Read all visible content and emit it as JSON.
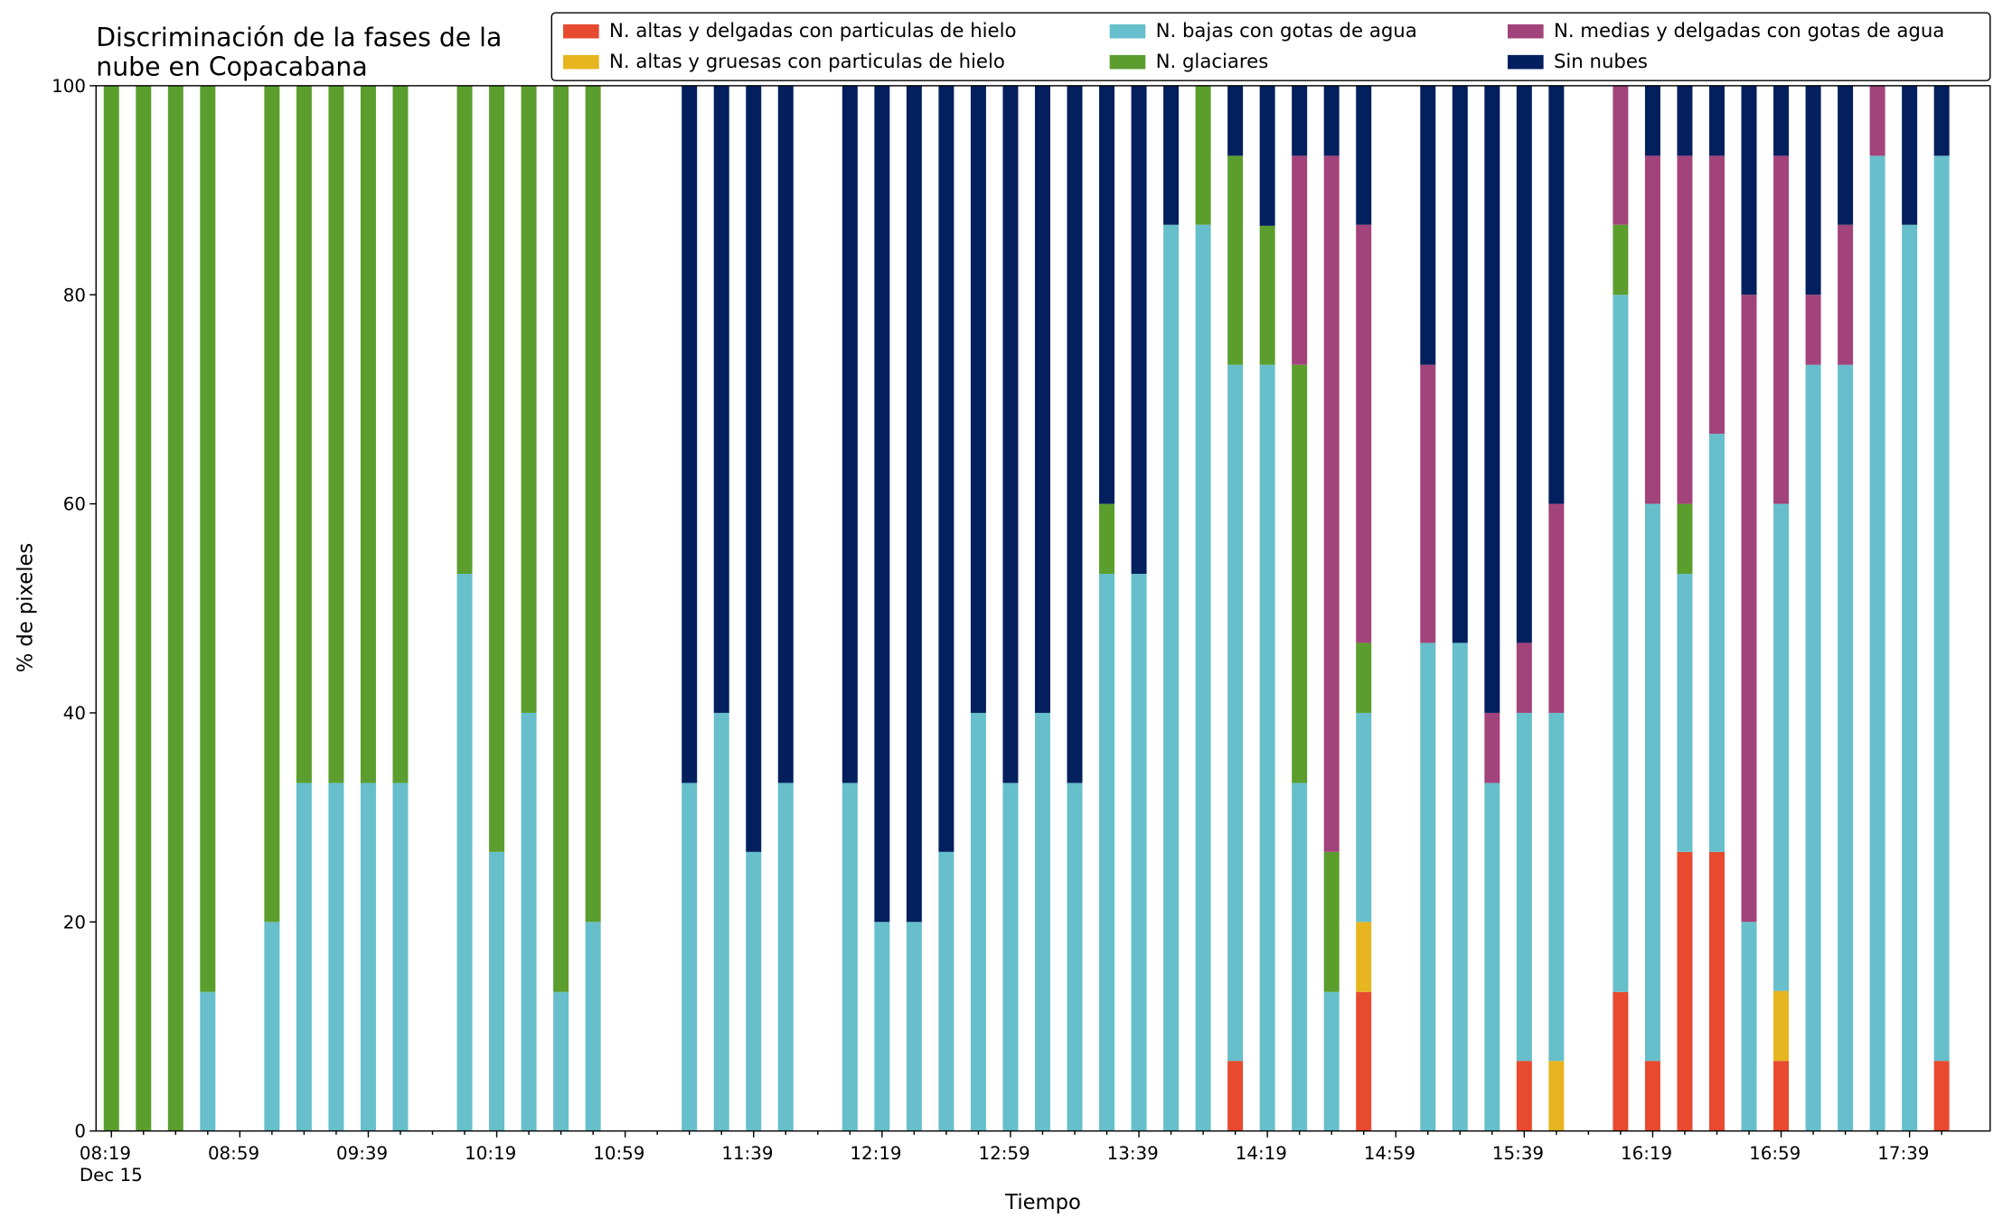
{
  "chart_data": {
    "type": "stacked_bar",
    "title": [
      "Discriminación de la fases de la",
      "nube en Copacabana"
    ],
    "xlabel": "Tiempo",
    "ylabel": "% de pixeles",
    "date_label": "Dec 15",
    "categories": [
      "08:19",
      null,
      null,
      null,
      "08:59",
      null,
      null,
      null,
      "09:39",
      null,
      null,
      null,
      "10:19",
      null,
      null,
      null,
      "10:59",
      null,
      null,
      null,
      "11:39",
      null,
      null,
      null,
      "12:19",
      null,
      null,
      null,
      "12:59",
      null,
      null,
      null,
      "13:39",
      null,
      null,
      null,
      "14:19",
      null,
      null,
      null,
      "14:59",
      null,
      null,
      null,
      "15:39",
      null,
      null,
      null,
      "16:19",
      null,
      null,
      null,
      "16:59",
      null,
      null,
      null,
      "17:39",
      null
    ],
    "ylim": [
      0,
      100
    ],
    "yticks": [
      0,
      20,
      40,
      60,
      80,
      100
    ],
    "legend": "upper right",
    "legend_columns": 3,
    "series": [
      {
        "name": "N. altas y delgadas con particulas de hielo",
        "color": "#e84a2f",
        "values": [
          0,
          0,
          0,
          0,
          0,
          0,
          0,
          0,
          0,
          0,
          0,
          0,
          0,
          0,
          0,
          0,
          0,
          0,
          0,
          0,
          0,
          0,
          0,
          0,
          0,
          0,
          0,
          0,
          0,
          0,
          0,
          0,
          0,
          0,
          0,
          6.7,
          0,
          0,
          0,
          13.3,
          0,
          0,
          0,
          0,
          6.7,
          0,
          0,
          13.3,
          6.7,
          26.7,
          26.7,
          0,
          6.7,
          0,
          0,
          0,
          0,
          6.7
        ]
      },
      {
        "name": "N. altas y gruesas con particulas de hielo",
        "color": "#e6b51f",
        "values": [
          0,
          0,
          0,
          0,
          0,
          0,
          0,
          0,
          0,
          0,
          0,
          0,
          0,
          0,
          0,
          0,
          0,
          0,
          0,
          0,
          0,
          0,
          0,
          0,
          0,
          0,
          0,
          0,
          0,
          0,
          0,
          0,
          0,
          0,
          0,
          0,
          0,
          0,
          0,
          6.7,
          0,
          0,
          0,
          0,
          0,
          6.7,
          0,
          0,
          0,
          0,
          0,
          0,
          6.7,
          0,
          0,
          0,
          0,
          0
        ]
      },
      {
        "name": "N. bajas con gotas de agua",
        "color": "#66bfcb",
        "values": [
          0,
          0,
          0,
          13.3,
          0,
          20,
          33.3,
          33.3,
          33.3,
          33.3,
          0,
          53.3,
          26.7,
          40,
          13.3,
          20,
          0,
          0,
          33.3,
          40,
          26.7,
          33.3,
          0,
          33.3,
          20,
          20,
          26.7,
          40,
          33.3,
          40,
          33.3,
          53.3,
          53.3,
          86.7,
          86.7,
          66.6,
          73.3,
          33.3,
          13.3,
          20,
          0,
          46.7,
          46.7,
          33.3,
          33.3,
          33.3,
          0,
          66.7,
          53.3,
          26.6,
          40,
          20,
          46.6,
          73.3,
          73.3,
          93.3,
          86.7,
          86.6
        ]
      },
      {
        "name": "N. glaciares",
        "color": "#5b9e2e",
        "values": [
          100,
          100,
          100,
          86.7,
          0,
          80,
          66.7,
          66.7,
          66.7,
          66.7,
          0,
          46.7,
          73.3,
          60,
          86.7,
          80,
          0,
          0,
          0,
          0,
          0,
          0,
          0,
          0,
          0,
          0,
          0,
          0,
          0,
          0,
          0,
          6.7,
          0,
          0,
          13.3,
          20,
          13.3,
          40,
          13.4,
          6.7,
          0,
          0,
          0,
          0,
          0,
          0,
          0,
          6.7,
          0,
          6.7,
          0,
          0,
          0,
          0,
          0,
          0,
          0,
          0
        ]
      },
      {
        "name": "N. medias y delgadas con gotas de agua",
        "color": "#a3437b",
        "values": [
          0,
          0,
          0,
          0,
          0,
          0,
          0,
          0,
          0,
          0,
          0,
          0,
          0,
          0,
          0,
          0,
          0,
          0,
          0,
          0,
          0,
          0,
          0,
          0,
          0,
          0,
          0,
          0,
          0,
          0,
          0,
          0,
          0,
          0,
          0,
          0,
          0,
          20,
          66.6,
          40,
          0,
          26.6,
          0,
          6.7,
          6.7,
          20,
          0,
          13.3,
          33.3,
          33.3,
          26.6,
          60,
          33.3,
          6.7,
          13.4,
          6.7,
          0,
          0
        ]
      },
      {
        "name": "Sin nubes",
        "color": "#031f5e",
        "values": [
          0,
          0,
          0,
          0,
          0,
          0,
          0,
          0,
          0,
          0,
          0,
          0,
          0,
          0,
          0,
          0,
          0,
          0,
          66.7,
          60,
          73.3,
          66.7,
          0,
          66.7,
          80,
          80,
          73.3,
          60,
          66.7,
          60,
          66.7,
          40,
          46.7,
          13.3,
          0,
          6.7,
          13.4,
          6.7,
          6.7,
          13.3,
          0,
          26.7,
          53.3,
          60,
          53.3,
          40,
          0,
          0,
          6.7,
          6.7,
          6.7,
          20,
          6.7,
          20,
          13.3,
          0,
          13.3,
          6.7
        ]
      }
    ]
  }
}
